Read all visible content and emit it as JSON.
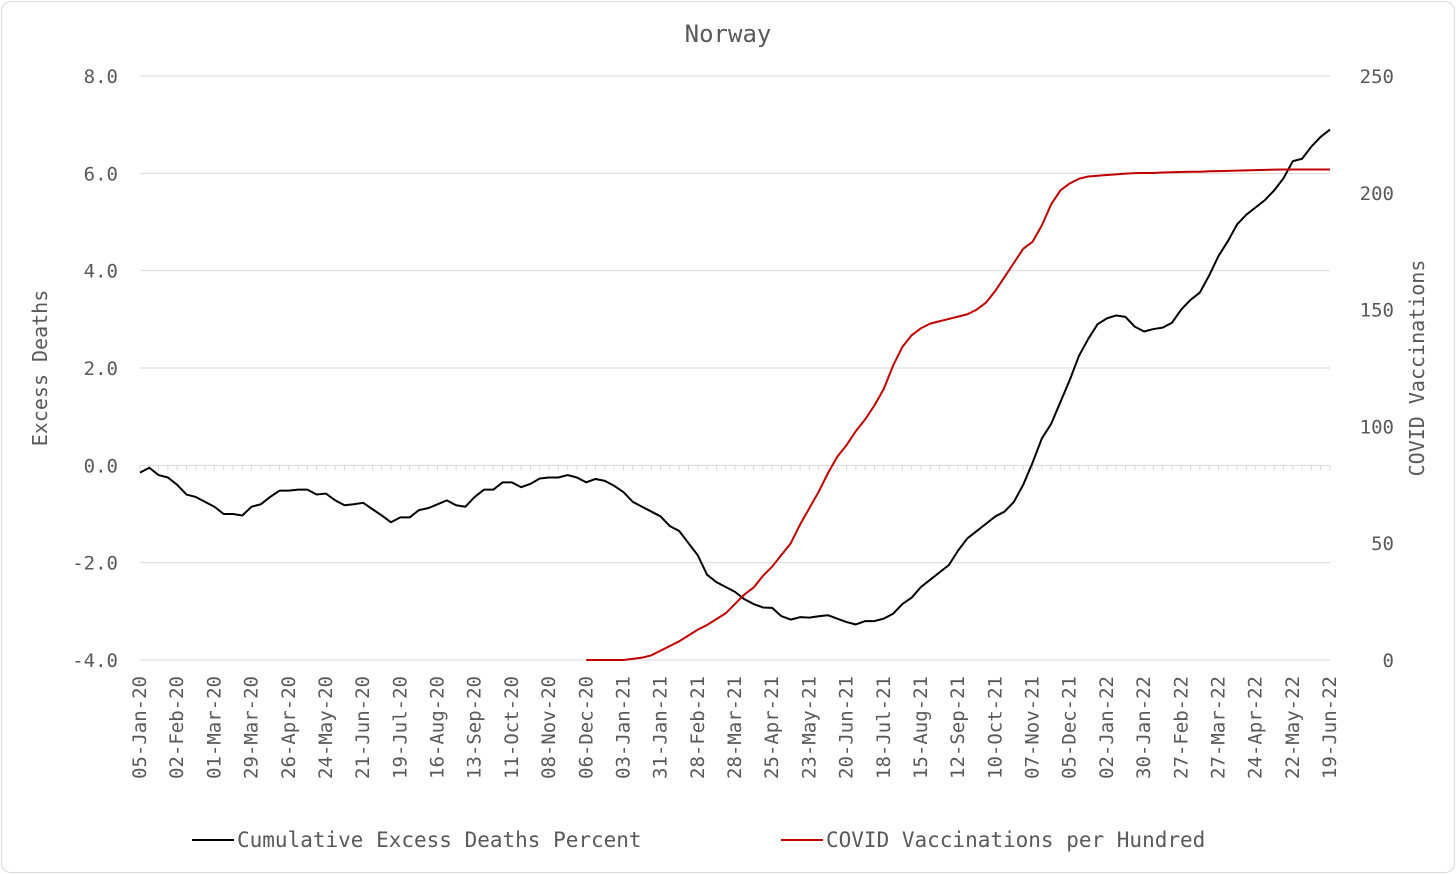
{
  "chart_data": {
    "type": "line",
    "title": "Norway",
    "ylabel_left": "Excess Deaths",
    "ylabel_right": "COVID Vaccinations",
    "ylim_left": [
      -4,
      8
    ],
    "ylim_right": [
      0,
      250
    ],
    "yticks_left": [
      "8.0",
      "6.0",
      "4.0",
      "2.0",
      "0.0",
      "-2.0",
      "-4.0"
    ],
    "yticks_right": [
      "250",
      "200",
      "150",
      "100",
      "50",
      "0"
    ],
    "yticks_left_values": [
      8,
      6,
      4,
      2,
      0,
      -2,
      -4
    ],
    "yticks_right_values": [
      250,
      200,
      150,
      100,
      50,
      0
    ],
    "grid": true,
    "legend_position": "bottom",
    "x_labels": [
      "05-Jan-20",
      "02-Feb-20",
      "01-Mar-20",
      "29-Mar-20",
      "26-Apr-20",
      "24-May-20",
      "21-Jun-20",
      "19-Jul-20",
      "16-Aug-20",
      "13-Sep-20",
      "11-Oct-20",
      "08-Nov-20",
      "06-Dec-20",
      "03-Jan-21",
      "31-Jan-21",
      "28-Feb-21",
      "28-Mar-21",
      "25-Apr-21",
      "23-May-21",
      "20-Jun-21",
      "18-Jul-21",
      "15-Aug-21",
      "12-Sep-21",
      "10-Oct-21",
      "07-Nov-21",
      "05-Dec-21",
      "02-Jan-22",
      "30-Jan-22",
      "27-Feb-22",
      "27-Mar-22",
      "24-Apr-22",
      "22-May-22",
      "19-Jun-22"
    ],
    "series": [
      {
        "name": "Cumulative Excess Deaths Percent",
        "axis": "left",
        "color": "#000000",
        "x": [
          0,
          1,
          2,
          3,
          4,
          5,
          6,
          7,
          8,
          9,
          10,
          11,
          12,
          13,
          14,
          15,
          16,
          17,
          18,
          19,
          20,
          21,
          22,
          23,
          24,
          25,
          26,
          27,
          28,
          29,
          30,
          31,
          32,
          33,
          34,
          35,
          36,
          37,
          38,
          39,
          40,
          41,
          42,
          43,
          44,
          45,
          46,
          47,
          48,
          49,
          50,
          51,
          52,
          53,
          54,
          55,
          56,
          57,
          58,
          59,
          60,
          61,
          62,
          63,
          64,
          65,
          66,
          67,
          68,
          69,
          70,
          71,
          72,
          73,
          74,
          75,
          76,
          77,
          78,
          79,
          80,
          81,
          82,
          83,
          84,
          85,
          86,
          87,
          88,
          89,
          90,
          91,
          92,
          93,
          94,
          95,
          96,
          97,
          98,
          99,
          100,
          101,
          102,
          103,
          104,
          105,
          106,
          107,
          108,
          109,
          110,
          111,
          112,
          113,
          114,
          115,
          116,
          117,
          118,
          119,
          120,
          121,
          122,
          123,
          124,
          125,
          126,
          127,
          128
        ],
        "values": [
          -0.15,
          -0.05,
          -0.2,
          -0.25,
          -0.4,
          -0.6,
          -0.65,
          -0.75,
          -0.85,
          -1.0,
          -1.0,
          -1.03,
          -0.85,
          -0.8,
          -0.65,
          -0.52,
          -0.52,
          -0.5,
          -0.5,
          -0.6,
          -0.58,
          -0.72,
          -0.82,
          -0.8,
          -0.77,
          -0.9,
          -1.03,
          -1.17,
          -1.07,
          -1.07,
          -0.92,
          -0.88,
          -0.8,
          -0.72,
          -0.82,
          -0.85,
          -0.65,
          -0.5,
          -0.5,
          -0.35,
          -0.35,
          -0.45,
          -0.38,
          -0.27,
          -0.25,
          -0.25,
          -0.2,
          -0.25,
          -0.35,
          -0.28,
          -0.32,
          -0.42,
          -0.55,
          -0.75,
          -0.85,
          -0.95,
          -1.05,
          -1.25,
          -1.35,
          -1.6,
          -1.85,
          -2.25,
          -2.4,
          -2.5,
          -2.6,
          -2.75,
          -2.85,
          -2.92,
          -2.93,
          -3.1,
          -3.17,
          -3.12,
          -3.13,
          -3.1,
          -3.08,
          -3.15,
          -3.22,
          -3.27,
          -3.2,
          -3.2,
          -3.15,
          -3.05,
          -2.85,
          -2.72,
          -2.5,
          -2.35,
          -2.2,
          -2.05,
          -1.75,
          -1.5,
          -1.35,
          -1.2,
          -1.05,
          -0.95,
          -0.75,
          -0.4,
          0.05,
          0.55,
          0.85,
          1.3,
          1.75,
          2.25,
          2.6,
          2.9,
          3.02,
          3.08,
          3.05,
          2.85,
          2.75,
          2.8,
          2.83,
          2.93,
          3.2,
          3.4,
          3.55,
          3.9,
          4.3,
          4.6,
          4.95,
          5.15,
          5.3,
          5.45,
          5.65,
          5.9,
          6.25,
          6.3,
          6.55,
          6.75,
          6.9
        ]
      },
      {
        "name": "COVID Vaccinations per Hundred",
        "axis": "right",
        "color": "#c00000",
        "x": [
          48,
          49,
          50,
          51,
          52,
          53,
          54,
          55,
          56,
          57,
          58,
          59,
          60,
          61,
          62,
          63,
          64,
          65,
          66,
          67,
          68,
          69,
          70,
          71,
          72,
          73,
          74,
          75,
          76,
          77,
          78,
          79,
          80,
          81,
          82,
          83,
          84,
          85,
          86,
          87,
          88,
          89,
          90,
          91,
          92,
          93,
          94,
          95,
          96,
          97,
          98,
          99,
          100,
          101,
          102,
          103,
          104,
          105,
          106,
          107,
          108,
          109,
          110,
          111,
          112,
          113,
          114,
          115,
          116,
          117,
          118,
          119,
          120,
          121,
          122,
          123,
          124,
          125,
          126,
          127,
          128
        ],
        "values": [
          0,
          0,
          0,
          0,
          0,
          0.5,
          1,
          2,
          4,
          6,
          8,
          10.5,
          13,
          15,
          17.5,
          20,
          24,
          28,
          31,
          36,
          40,
          45,
          50,
          58,
          65,
          72,
          80,
          87,
          92,
          98,
          103,
          109,
          116,
          126,
          134,
          139,
          142,
          144,
          145,
          146,
          147,
          148,
          150,
          153,
          158,
          164,
          170,
          176,
          179,
          186,
          195,
          201,
          204,
          206,
          207,
          207.3,
          207.6,
          207.9,
          208.2,
          208.4,
          208.5,
          208.5,
          208.7,
          208.8,
          208.9,
          209,
          209,
          209.2,
          209.3,
          209.4,
          209.5,
          209.6,
          209.7,
          209.8,
          209.9,
          210,
          210,
          210,
          210,
          210,
          210
        ]
      }
    ]
  }
}
